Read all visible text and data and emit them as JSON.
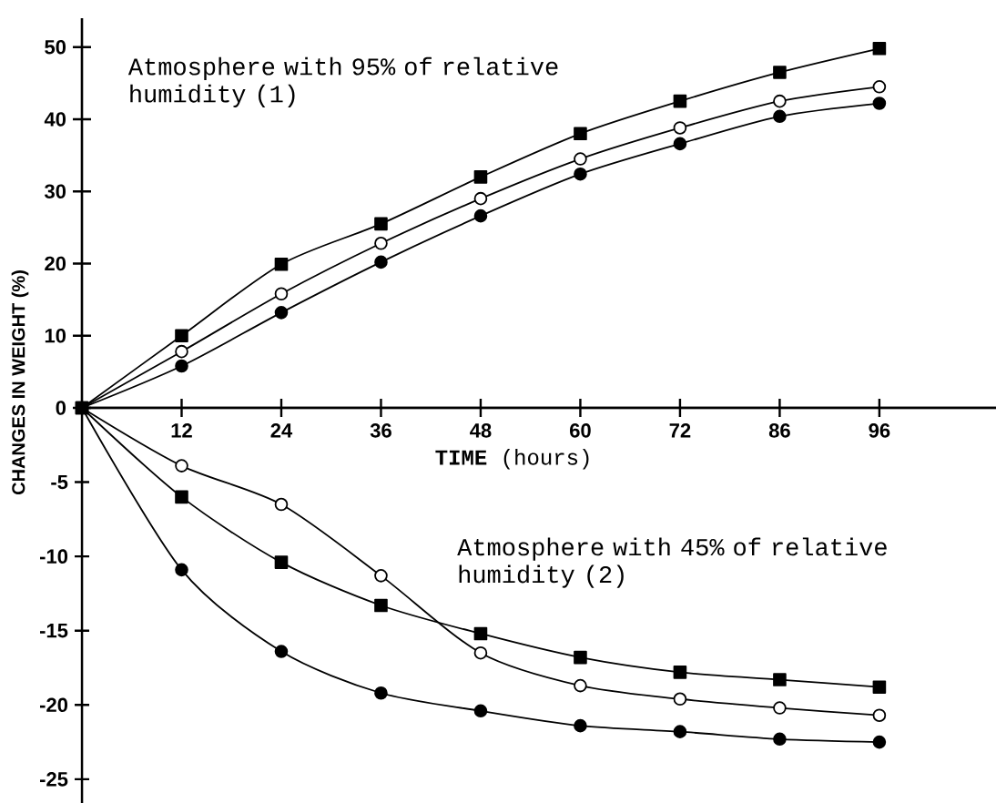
{
  "chart_data": [
    {
      "type": "line",
      "categories": [
        null,
        "12",
        "24",
        "36",
        "48",
        "60",
        "72",
        "86",
        "96"
      ],
      "ylim": [
        0,
        54
      ],
      "yticks": [
        0,
        10,
        20,
        30,
        40,
        50
      ],
      "xlabel": "**TIME** (hours)",
      "ylabel": "CHANGES IN WEIGHT (%)",
      "grid": false,
      "line_style": "solid",
      "annotations": [
        "Atmosphere with 95% of relative humidity (1)"
      ],
      "series": [
        {
          "color": "#000000",
          "marker": "square",
          "values": [
            0,
            10,
            19.9,
            25.5,
            32,
            38,
            42.5,
            46.5,
            49.8
          ]
        },
        {
          "color": "#000000",
          "marker": "circle",
          "values": [
            0,
            7.8,
            15.8,
            22.8,
            29,
            34.5,
            38.8,
            42.5,
            44.5
          ]
        },
        {
          "color": "#000000",
          "marker": "dot",
          "values": [
            0,
            5.8,
            13.2,
            20.2,
            26.6,
            32.4,
            36.6,
            40.4,
            42.2
          ]
        }
      ]
    },
    {
      "type": "line",
      "categories": [
        null,
        "12",
        "24",
        "36",
        "48",
        "60",
        "72",
        "86",
        "96"
      ],
      "ylim": [
        -26.6,
        0
      ],
      "yticks": [
        -25,
        -20,
        -15,
        -10,
        -5
      ],
      "tick_labels": "y",
      "grid": false,
      "line_style": "solid",
      "annotations": [
        "Atmosphere with 45% of relative humidity (2)"
      ],
      "series": [
        {
          "color": "#000000",
          "marker": "circle",
          "values": [
            0,
            -3.9,
            -6.5,
            -11.3,
            -16.5,
            -18.7,
            -19.6,
            -20.2,
            -20.7
          ]
        },
        {
          "color": "#000000",
          "marker": "square",
          "values": [
            0,
            -6.0,
            -10.4,
            -13.3,
            -15.2,
            -16.8,
            -17.8,
            -18.3,
            -18.8
          ]
        },
        {
          "color": "#000000",
          "marker": "dot",
          "values": [
            0,
            -10.9,
            -16.4,
            -19.2,
            -20.4,
            -21.4,
            -21.8,
            -22.3,
            -22.5
          ]
        }
      ]
    }
  ]
}
